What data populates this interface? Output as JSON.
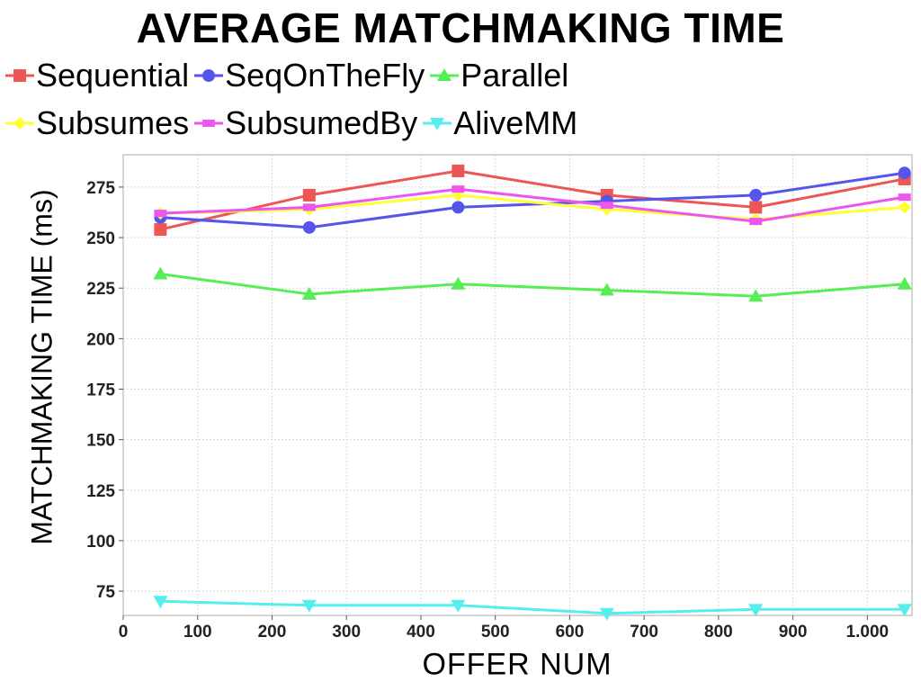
{
  "chart_data": {
    "type": "line",
    "title": "AVERAGE MATCHMAKING TIME",
    "xlabel": "OFFER NUM",
    "ylabel": "MATCHMAKING TIME (ms)",
    "xlim": [
      0,
      1060
    ],
    "ylim": [
      63,
      291
    ],
    "x_ticks": [
      0,
      100,
      200,
      300,
      400,
      500,
      600,
      700,
      800,
      900,
      1000
    ],
    "x_tick_labels": [
      "0",
      "100",
      "200",
      "300",
      "400",
      "500",
      "600",
      "700",
      "800",
      "900",
      "1.000"
    ],
    "y_ticks": [
      75,
      100,
      125,
      150,
      175,
      200,
      225,
      250,
      275
    ],
    "y_tick_labels": [
      "75",
      "100",
      "125",
      "150",
      "175",
      "200",
      "225",
      "250",
      "275"
    ],
    "grid": true,
    "legend_position": "top",
    "x": [
      50,
      250,
      450,
      650,
      850,
      1050
    ],
    "series": [
      {
        "name": "Sequential",
        "color": "#ee5555",
        "marker": "square",
        "values": [
          254,
          271,
          283,
          271,
          265,
          279
        ]
      },
      {
        "name": "SeqOnTheFly",
        "color": "#5555ee",
        "marker": "circle",
        "values": [
          260,
          255,
          265,
          268,
          271,
          282
        ]
      },
      {
        "name": "Parallel",
        "color": "#55ee55",
        "marker": "triangle-up",
        "values": [
          232,
          222,
          227,
          224,
          221,
          227
        ]
      },
      {
        "name": "Subsumes",
        "color": "#ffff33",
        "marker": "diamond",
        "values": [
          262,
          264,
          271,
          264,
          259,
          265
        ]
      },
      {
        "name": "SubsumedBy",
        "color": "#ee55ee",
        "marker": "rect",
        "values": [
          262,
          265,
          274,
          266,
          258,
          270
        ]
      },
      {
        "name": "AliveMM",
        "color": "#55eeee",
        "marker": "triangle-down",
        "values": [
          70,
          68,
          68,
          64,
          66,
          66
        ]
      }
    ]
  }
}
